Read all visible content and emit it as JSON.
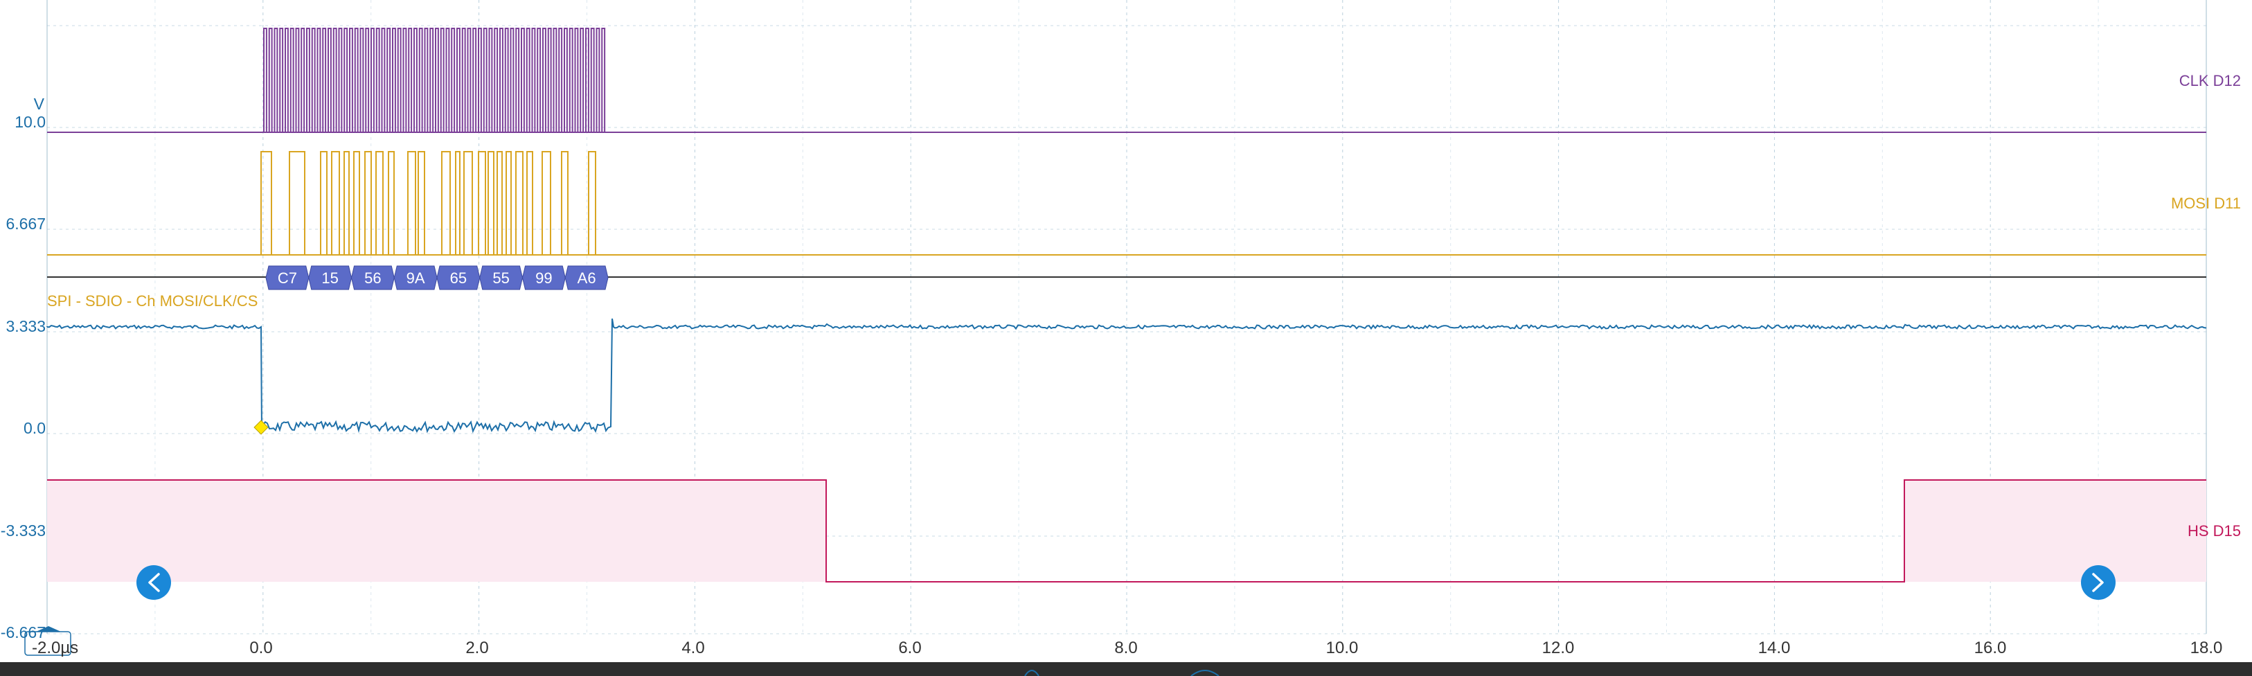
{
  "axes": {
    "y_unit": "V",
    "y_ticks": [
      "10.0",
      "6.667",
      "3.333",
      "0.0",
      "-3.333",
      "-6.667"
    ],
    "x_ticks": [
      "0.0",
      "2.0",
      "4.0",
      "6.0",
      "8.0",
      "10.0",
      "12.0",
      "14.0",
      "16.0",
      "18.0"
    ],
    "x_start_label": "-2.0µs",
    "x_range_us": [
      -2.0,
      18.0
    ],
    "grid": true
  },
  "channels": {
    "clk": {
      "label": "CLK D12",
      "color": "#7b3f98"
    },
    "mosi": {
      "label": "MOSI D11",
      "color": "#d9a521"
    },
    "analog": {
      "color": "#1d6fa8",
      "high_v": 3.333,
      "low_v": 0.0
    },
    "hs": {
      "label": "HS D15",
      "color": "#c2185b",
      "fill": "#fbe9f1"
    }
  },
  "decoder": {
    "label": "SPI - SDIO - Ch MOSI/CLK/CS",
    "label_color": "#d9a521",
    "byte_color": "#5b6bc8",
    "bytes": [
      "C7",
      "15",
      "56",
      "9A",
      "65",
      "55",
      "99",
      "A6"
    ]
  },
  "navigation": {
    "prev_icon": "chevron-left-icon",
    "next_icon": "chevron-right-icon",
    "accent": "#1a88d8"
  }
}
